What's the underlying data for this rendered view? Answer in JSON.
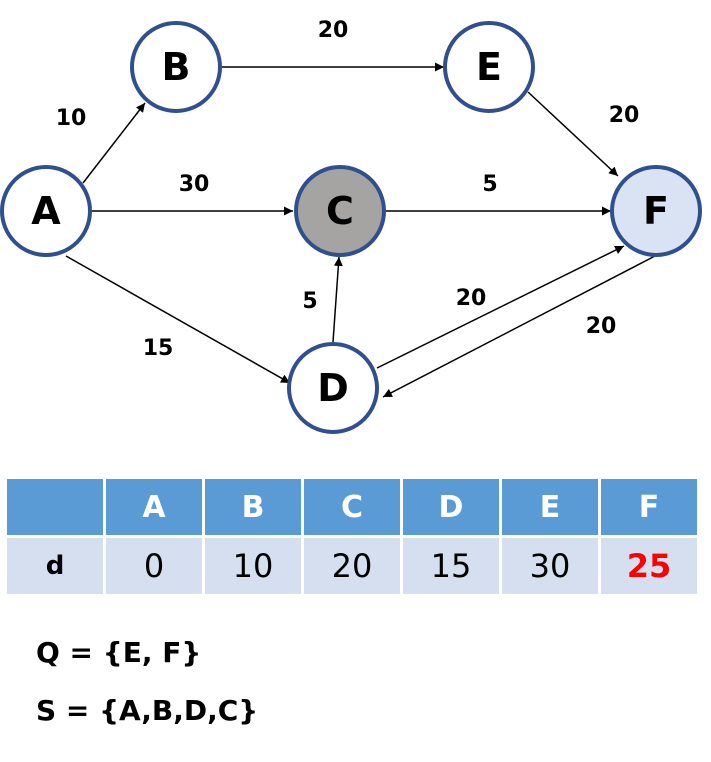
{
  "graph": {
    "nodes": [
      {
        "id": "A",
        "label": "A",
        "fill": "#ffffff"
      },
      {
        "id": "B",
        "label": "B",
        "fill": "#ffffff"
      },
      {
        "id": "C",
        "label": "C",
        "fill": "#a6a3a3"
      },
      {
        "id": "D",
        "label": "D",
        "fill": "#ffffff"
      },
      {
        "id": "E",
        "label": "E",
        "fill": "#ffffff"
      },
      {
        "id": "F",
        "label": "F",
        "fill": "#dae3f3"
      }
    ],
    "edges": [
      {
        "from": "A",
        "to": "B",
        "weight": "10"
      },
      {
        "from": "A",
        "to": "C",
        "weight": "30"
      },
      {
        "from": "A",
        "to": "D",
        "weight": "15"
      },
      {
        "from": "B",
        "to": "E",
        "weight": "20"
      },
      {
        "from": "C",
        "to": "F",
        "weight": "5"
      },
      {
        "from": "D",
        "to": "C",
        "weight": "5"
      },
      {
        "from": "D",
        "to": "F",
        "weight": "20"
      },
      {
        "from": "F",
        "to": "D",
        "weight": "20"
      },
      {
        "from": "E",
        "to": "F",
        "weight": "20"
      }
    ],
    "node_stroke": "#2f4f8f"
  },
  "table": {
    "header": [
      "",
      "A",
      "B",
      "C",
      "D",
      "E",
      "F"
    ],
    "row_label": "d",
    "values": [
      "0",
      "10",
      "20",
      "15",
      "30",
      "25"
    ],
    "highlight_color": "#ff0000",
    "header_bg": "#5b9bd5",
    "row_bg": "#d6dff0"
  },
  "sets": {
    "q": "Q = {E, F}",
    "s": "S = {A,B,D,C}"
  }
}
